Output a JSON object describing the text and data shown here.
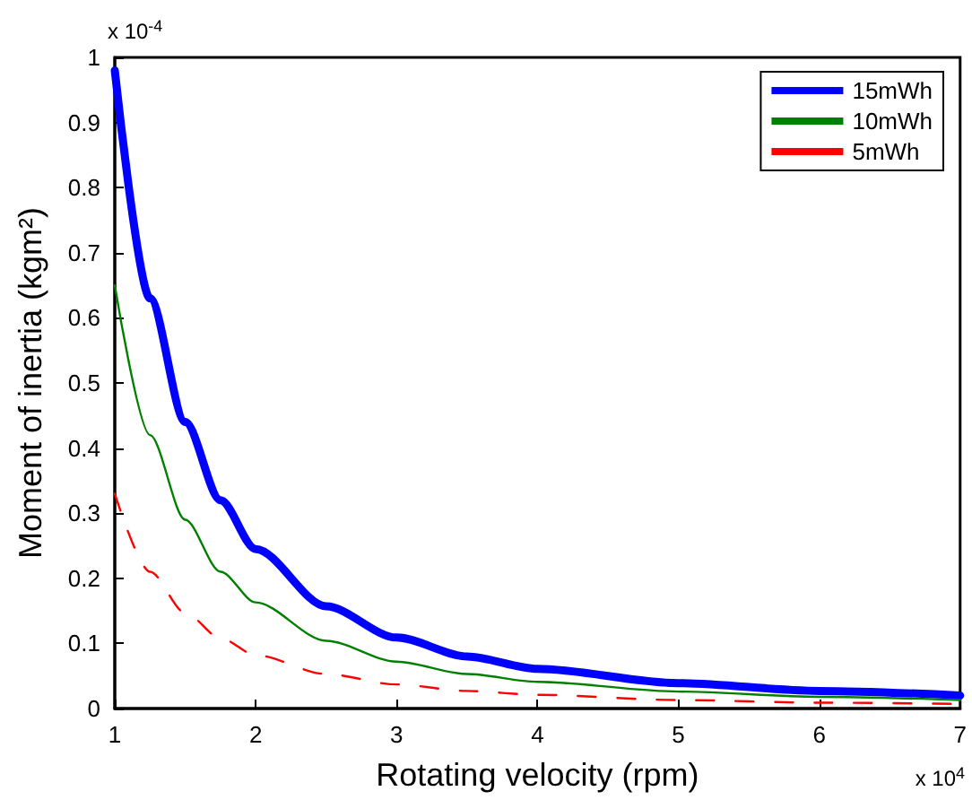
{
  "chart_data": {
    "type": "line",
    "xlabel": "Rotating velocity (rpm)",
    "ylabel": "Moment of inertia (kgm²)",
    "x": [
      1,
      1.25,
      1.5,
      1.75,
      2,
      2.5,
      3,
      3.5,
      4,
      5,
      6,
      7
    ],
    "series": [
      {
        "name": "15mWh",
        "color": "#0000ff",
        "line_style": "solid",
        "values": [
          0.98,
          0.63,
          0.44,
          0.32,
          0.245,
          0.157,
          0.109,
          0.08,
          0.061,
          0.039,
          0.027,
          0.02
        ]
      },
      {
        "name": "10mWh",
        "color": "#008000",
        "line_style": "solid",
        "values": [
          0.65,
          0.42,
          0.29,
          0.21,
          0.163,
          0.104,
          0.072,
          0.053,
          0.041,
          0.026,
          0.018,
          0.013
        ]
      },
      {
        "name": "5mWh",
        "color": "#ff0000",
        "line_style": "dashed",
        "values": [
          0.33,
          0.21,
          0.147,
          0.108,
          0.082,
          0.053,
          0.037,
          0.027,
          0.021,
          0.013,
          0.009,
          0.007
        ]
      }
    ],
    "xlim": [
      1,
      7
    ],
    "xticks": [
      1,
      2,
      3,
      4,
      5,
      6,
      7
    ],
    "ylim": [
      0,
      1
    ],
    "yticks": [
      0,
      0.1,
      0.2,
      0.3,
      0.4,
      0.5,
      0.6,
      0.7,
      0.8,
      0.9,
      1
    ],
    "grid": false,
    "legend": "top right",
    "marker": "none",
    "annotations": [
      "x 10$^{-4}$",
      "x 10$^{4}$"
    ]
  }
}
